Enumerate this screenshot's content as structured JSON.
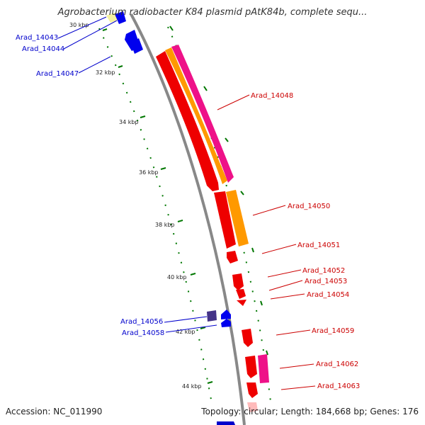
{
  "title": "Agrobacterium radiobacter K84 plasmid pAtK84b, complete sequ...",
  "footer": {
    "accession": "Accession: NC_011990",
    "summary": "Topology: circular; Length: 184,668 bp; Genes: 176"
  },
  "colors": {
    "forward_label": "#cc0000",
    "reverse_label": "#0000cc",
    "backbone": "#888888",
    "tick": "#006600",
    "gene_red": "#ee0000",
    "gene_orange": "#ff9900",
    "gene_pink": "#ee1188",
    "gene_blue": "#0000ee",
    "gene_purple": "#443388"
  },
  "kbp_ticks": [
    "30 kbp",
    "32 kbp",
    "34 kbp",
    "36 kbp",
    "38 kbp",
    "40 kbp",
    "42 kbp",
    "44 kbp"
  ],
  "reverse_labels": [
    "Arad_14043",
    "Arad_14044",
    "Arad_14047",
    "Arad_14056",
    "Arad_14058"
  ],
  "forward_labels": [
    "Arad_14048",
    "Arad_14050",
    "Arad_14051",
    "Arad_14052",
    "Arad_14053",
    "Arad_14054",
    "Arad_14059",
    "Arad_14062",
    "Arad_14063"
  ]
}
